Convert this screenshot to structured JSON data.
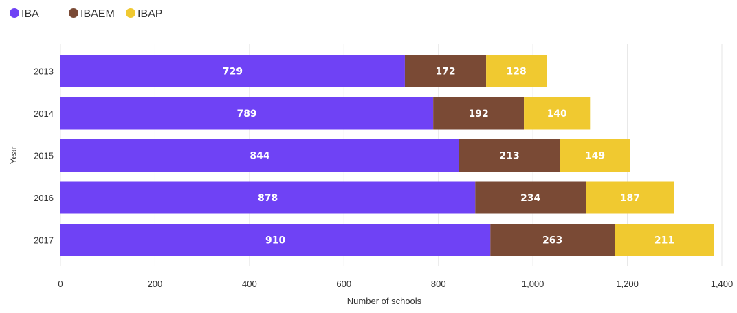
{
  "chart_data": {
    "type": "bar",
    "orientation": "horizontal",
    "stacked": true,
    "categories": [
      "2013",
      "2014",
      "2015",
      "2016",
      "2017"
    ],
    "series": [
      {
        "name": "IBA",
        "color": "#6f42f5",
        "values": [
          729,
          789,
          844,
          878,
          910
        ]
      },
      {
        "name": "IBAEM",
        "color": "#7a4a35",
        "values": [
          172,
          192,
          213,
          234,
          263
        ]
      },
      {
        "name": "IBAP",
        "color": "#f0c930",
        "values": [
          128,
          140,
          149,
          187,
          211
        ]
      }
    ],
    "xlabel": "Number of schools",
    "ylabel": "Year",
    "xlim": [
      0,
      1400
    ],
    "x_ticks": [
      0,
      200,
      400,
      600,
      800,
      1000,
      1200,
      1400
    ],
    "x_tick_labels": [
      "0",
      "200",
      "400",
      "600",
      "800",
      "1,000",
      "1,200",
      "1,400"
    ],
    "grid": true,
    "legend_position": "top-left",
    "data_labels": true
  }
}
